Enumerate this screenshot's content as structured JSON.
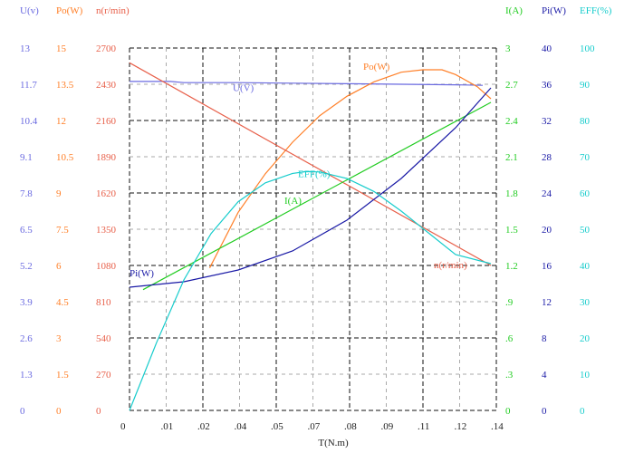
{
  "chart_data": {
    "type": "line",
    "xlabel": "T(N.m)",
    "x_ticks": [
      "0",
      ".01",
      ".02",
      ".04",
      ".05",
      ".07",
      ".08",
      ".09",
      ".11",
      ".12",
      ".14"
    ],
    "xlim": [
      0,
      0.135
    ],
    "axes": [
      {
        "key": "U",
        "title": "U(v)",
        "color": "#6a6ae0",
        "side": "left",
        "min": 0,
        "max": 13,
        "ticks": [
          "0",
          "1.3",
          "2.6",
          "3.9",
          "5.2",
          "6.5",
          "7.8",
          "9.1",
          "10.4",
          "11.7",
          "13"
        ]
      },
      {
        "key": "Po",
        "title": "Po(W)",
        "color": "#ff7f27",
        "side": "left",
        "min": 0,
        "max": 15,
        "ticks": [
          "0",
          "1.5",
          "3",
          "4.5",
          "6",
          "7.5",
          "9",
          "10.5",
          "12",
          "13.5",
          "15"
        ]
      },
      {
        "key": "n",
        "title": "n(r/min)",
        "color": "#e8604a",
        "side": "left",
        "min": 0,
        "max": 2700,
        "ticks": [
          "0",
          "270",
          "540",
          "810",
          "1080",
          "1350",
          "1620",
          "1890",
          "2160",
          "2430",
          "2700"
        ]
      },
      {
        "key": "I",
        "title": "I(A)",
        "color": "#22cc22",
        "side": "right",
        "min": 0,
        "max": 3,
        "ticks": [
          "0",
          ".3",
          ".6",
          ".9",
          "1.2",
          "1.5",
          "1.8",
          "2.1",
          "2.4",
          "2.7",
          "3"
        ]
      },
      {
        "key": "Pi",
        "title": "Pi(W)",
        "color": "#1a1aa6",
        "side": "right",
        "min": 0,
        "max": 40,
        "ticks": [
          "0",
          "4",
          "8",
          "12",
          "16",
          "20",
          "24",
          "28",
          "32",
          "36",
          "40"
        ]
      },
      {
        "key": "EFF",
        "title": "EFF(%)",
        "color": "#16cccc",
        "side": "right",
        "min": 0,
        "max": 100,
        "ticks": [
          "0",
          "10",
          "20",
          "30",
          "40",
          "50",
          "60",
          "70",
          "80",
          "90",
          "100"
        ]
      }
    ],
    "series": [
      {
        "name": "U(V)",
        "axis": "U",
        "color": "#6a6ae0",
        "label": "U(V)",
        "x": [
          0,
          0.015,
          0.02,
          0.04,
          0.06,
          0.08,
          0.1,
          0.12,
          0.13
        ],
        "y": [
          11.8,
          11.8,
          11.76,
          11.76,
          11.74,
          11.72,
          11.7,
          11.68,
          11.66
        ]
      },
      {
        "name": "Po(W)",
        "axis": "Po",
        "color": "#ff7f27",
        "label": "Po(W)",
        "x": [
          0.0295,
          0.04,
          0.05,
          0.06,
          0.07,
          0.08,
          0.09,
          0.1,
          0.108,
          0.115,
          0.12,
          0.128,
          0.133
        ],
        "y": [
          5.9,
          8.2,
          9.8,
          11.1,
          12.2,
          13.0,
          13.6,
          14.0,
          14.1,
          14.1,
          13.9,
          13.4,
          12.9
        ]
      },
      {
        "name": "n(r/min)",
        "axis": "n",
        "color": "#e8604a",
        "label": "n(r/min)",
        "x": [
          0,
          0.133
        ],
        "y": [
          2590,
          1080
        ]
      },
      {
        "name": "I(A)",
        "axis": "I",
        "color": "#22cc22",
        "label": "I(A)",
        "x": [
          0.005,
          0.133
        ],
        "y": [
          1.0,
          2.55
        ]
      },
      {
        "name": "Pi(W)",
        "axis": "Pi",
        "color": "#1a1aa6",
        "label": "Pi(W)",
        "x": [
          0,
          0.02,
          0.04,
          0.06,
          0.08,
          0.1,
          0.12,
          0.133
        ],
        "y": [
          13.6,
          14.2,
          15.5,
          17.6,
          21.0,
          25.6,
          31.2,
          35.6
        ]
      },
      {
        "name": "EFF(%)",
        "axis": "EFF",
        "color": "#16cccc",
        "label": "EFF(%)",
        "x": [
          0,
          0.01,
          0.02,
          0.03,
          0.04,
          0.05,
          0.06,
          0.065,
          0.07,
          0.08,
          0.09,
          0.1,
          0.11,
          0.12,
          0.133
        ],
        "y": [
          0,
          18.8,
          36.0,
          48.8,
          57.6,
          62.8,
          65.4,
          65.9,
          65.8,
          64.0,
          60.4,
          55.0,
          49.0,
          43.0,
          40.5
        ]
      }
    ]
  }
}
